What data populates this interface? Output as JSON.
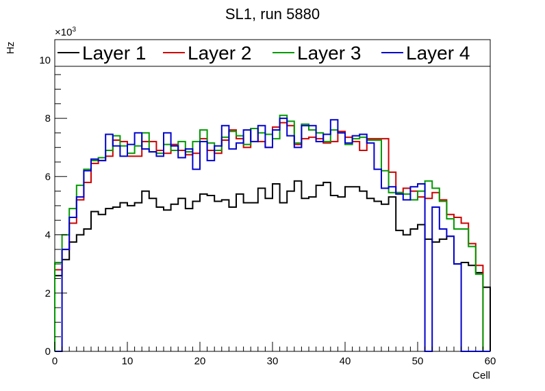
{
  "chart_data": {
    "type": "line",
    "title": "SL1, run 5880",
    "xlabel": "Cell",
    "ylabel": "Hz",
    "y_multiplier": "×10",
    "y_multiplier_exp": "3",
    "xlim": [
      0,
      60
    ],
    "ylim": [
      0,
      10.7
    ],
    "x_ticks": [
      "0",
      "10",
      "20",
      "30",
      "40",
      "50",
      "60"
    ],
    "y_ticks": [
      "0",
      "2",
      "4",
      "6",
      "8",
      "10"
    ],
    "grid": false,
    "legend_placement": "top",
    "series": [
      {
        "name": "Layer 1",
        "color": "#000000",
        "values": [
          2.6,
          3.15,
          3.75,
          4.0,
          4.2,
          4.8,
          4.7,
          4.9,
          4.95,
          5.1,
          5.0,
          5.1,
          5.5,
          5.25,
          4.95,
          4.85,
          5.05,
          5.25,
          4.9,
          5.15,
          5.4,
          5.35,
          5.15,
          5.2,
          4.95,
          5.4,
          5.1,
          5.1,
          5.6,
          5.25,
          5.75,
          5.1,
          5.5,
          5.85,
          5.25,
          5.3,
          5.7,
          5.8,
          5.35,
          5.3,
          5.65,
          5.65,
          5.5,
          5.25,
          5.15,
          5.05,
          5.3,
          4.15,
          4.0,
          4.2,
          4.35,
          3.85,
          3.75,
          3.85,
          3.95,
          3.0,
          3.05,
          2.95,
          2.7,
          2.2
        ]
      },
      {
        "name": "Layer 2",
        "color": "#cc0000",
        "values": [
          2.8,
          3.5,
          4.4,
          5.2,
          5.8,
          6.45,
          6.55,
          6.7,
          7.25,
          7.2,
          6.7,
          6.7,
          7.2,
          7.2,
          6.9,
          6.8,
          7.1,
          6.9,
          6.75,
          6.8,
          7.3,
          6.9,
          6.8,
          7.25,
          7.6,
          7.3,
          7.0,
          7.65,
          7.2,
          7.0,
          7.7,
          7.85,
          7.75,
          7.1,
          7.3,
          7.35,
          7.3,
          7.15,
          7.2,
          7.55,
          7.35,
          7.2,
          6.9,
          7.3,
          7.3,
          7.3,
          6.15,
          5.45,
          5.6,
          5.5,
          5.3,
          5.25,
          5.45,
          5.2,
          4.7,
          4.6,
          4.4,
          3.7,
          2.95,
          0
        ]
      },
      {
        "name": "Layer 3",
        "color": "#009900",
        "values": [
          3.05,
          4.0,
          4.9,
          5.7,
          6.25,
          6.55,
          6.65,
          6.9,
          7.4,
          7.05,
          6.8,
          7.05,
          7.5,
          6.85,
          6.8,
          7.1,
          6.9,
          7.2,
          6.85,
          7.2,
          7.6,
          7.15,
          6.9,
          7.35,
          7.55,
          7.4,
          7.1,
          7.65,
          7.5,
          7.45,
          7.3,
          8.1,
          7.9,
          7.15,
          7.8,
          7.6,
          7.5,
          7.2,
          7.6,
          7.5,
          7.1,
          7.3,
          7.35,
          7.25,
          7.25,
          6.2,
          5.45,
          5.45,
          5.4,
          5.2,
          5.5,
          5.85,
          5.6,
          5.15,
          4.55,
          4.2,
          4.2,
          3.6,
          2.65,
          0
        ]
      },
      {
        "name": "Layer 4",
        "color": "#0000cc",
        "values": [
          0,
          3.5,
          4.6,
          5.3,
          6.2,
          6.6,
          6.55,
          7.45,
          7.05,
          6.7,
          7.1,
          7.5,
          6.95,
          6.85,
          6.7,
          7.5,
          7.05,
          6.65,
          6.95,
          6.25,
          7.2,
          6.55,
          7.05,
          7.75,
          6.95,
          7.15,
          7.6,
          7.2,
          7.75,
          7.0,
          7.6,
          8.0,
          7.4,
          7.0,
          7.75,
          7.75,
          7.2,
          7.45,
          7.95,
          7.5,
          7.15,
          7.4,
          7.45,
          7.15,
          6.25,
          5.6,
          5.65,
          5.4,
          5.2,
          5.65,
          5.75,
          0,
          4.95,
          4.2,
          3.95,
          3.0,
          0,
          0,
          0,
          0
        ]
      }
    ]
  }
}
